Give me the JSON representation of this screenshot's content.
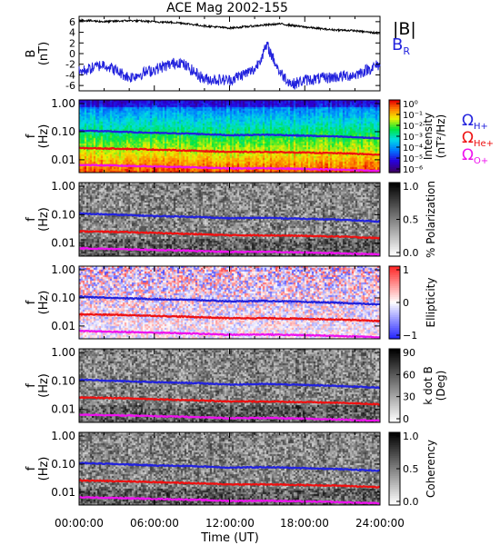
{
  "figure": {
    "title": "ACE Mag 2002-155"
  },
  "x_axis": {
    "label": "Time (UT)",
    "ticks": [
      "00:00:00",
      "06:00:00",
      "12:00:00",
      "18:00:00",
      "24:00:00"
    ],
    "range_hours": [
      0,
      24
    ]
  },
  "legends": {
    "field": [
      {
        "text": "|B|",
        "color": "#000000"
      },
      {
        "text": "B",
        "sub": "R",
        "color": "#2222dd"
      }
    ],
    "gyro": [
      {
        "text": "Ω",
        "sub": "H+",
        "color": "#2222dd"
      },
      {
        "text": "Ω",
        "sub": "He+",
        "color": "#ee1111"
      },
      {
        "text": "Ω",
        "sub": "O+",
        "color": "#ee11ee"
      }
    ]
  },
  "panels": [
    {
      "id": "field",
      "ylabel1": "B",
      "ylabel2": "(nT)",
      "yticks": [
        "-6",
        "-4",
        "-2",
        "0",
        "2",
        "4",
        "6"
      ],
      "ylim": [
        -7,
        7
      ]
    },
    {
      "id": "intensity",
      "ylabel1": "f",
      "ylabel2": "(Hz)",
      "yticks": [
        "1.00",
        "0.10",
        "0.01"
      ],
      "colorbar": {
        "palette": "rainbow",
        "label1": "Intensity",
        "label2": "(nT²/Hz)",
        "ticks": [
          "10⁰",
          "10⁻¹",
          "10⁻²",
          "10⁻³",
          "10⁻⁴",
          "10⁻⁵",
          "10⁻⁶"
        ]
      }
    },
    {
      "id": "polarization",
      "ylabel1": "f",
      "ylabel2": "(Hz)",
      "yticks": [
        "1.00",
        "0.10",
        "0.01"
      ],
      "colorbar": {
        "palette": "gray",
        "label1": "% Polarization",
        "label2": "",
        "ticks": [
          "1.0",
          "0.5",
          "0.0"
        ]
      }
    },
    {
      "id": "ellipticity",
      "ylabel1": "f",
      "ylabel2": "(Hz)",
      "yticks": [
        "1.00",
        "0.10",
        "0.01"
      ],
      "colorbar": {
        "palette": "bwr",
        "label1": "Ellipticity",
        "label2": "",
        "ticks": [
          "1",
          "0",
          "−1"
        ]
      }
    },
    {
      "id": "kdotb",
      "ylabel1": "f",
      "ylabel2": "(Hz)",
      "yticks": [
        "1.00",
        "0.10",
        "0.01"
      ],
      "colorbar": {
        "palette": "gray",
        "label1": "k dot B",
        "label2": "(Deg)",
        "ticks": [
          "90",
          "60",
          "30",
          "0"
        ]
      }
    },
    {
      "id": "coherency",
      "ylabel1": "f",
      "ylabel2": "(Hz)",
      "yticks": [
        "1.00",
        "0.10",
        "0.01"
      ],
      "colorbar": {
        "palette": "gray",
        "label1": "Coherency",
        "label2": "",
        "ticks": [
          "1.0",
          "0.5",
          "0.0"
        ]
      }
    }
  ],
  "chart_data": {
    "type": "line",
    "x_unit": "hours UT",
    "series": [
      {
        "name": "|B|",
        "color": "#000000",
        "x": [
          0,
          2,
          4,
          6,
          8,
          10,
          12,
          14,
          16,
          18,
          20,
          22,
          24
        ],
        "y": [
          6.3,
          6.0,
          6.2,
          6.0,
          5.8,
          5.2,
          4.8,
          5.2,
          5.6,
          5.0,
          4.5,
          4.3,
          3.8
        ]
      },
      {
        "name": "B_R",
        "color": "#2222dd",
        "x": [
          0,
          2,
          4,
          6,
          8,
          10,
          12,
          14,
          15,
          16,
          17,
          18,
          20,
          22,
          24
        ],
        "y": [
          -3.5,
          -2.0,
          -4.5,
          -3.0,
          -1.5,
          -4.8,
          -5.0,
          -3.0,
          1.5,
          -3.5,
          -5.8,
          -5.0,
          -4.5,
          -4.0,
          -2.0
        ]
      },
      {
        "name": "Ω_H+",
        "color": "#2222dd",
        "unit": "Hz",
        "x": [
          0,
          3,
          6,
          9,
          12,
          15,
          18,
          21,
          24
        ],
        "y": [
          0.11,
          0.1,
          0.09,
          0.085,
          0.075,
          0.078,
          0.072,
          0.066,
          0.058
        ]
      },
      {
        "name": "Ω_He+",
        "color": "#ee1111",
        "unit": "Hz",
        "x": [
          0,
          3,
          6,
          9,
          12,
          15,
          18,
          21,
          24
        ],
        "y": [
          0.026,
          0.025,
          0.023,
          0.021,
          0.019,
          0.019,
          0.018,
          0.017,
          0.015
        ]
      },
      {
        "name": "Ω_O+",
        "color": "#ee11ee",
        "unit": "Hz",
        "x": [
          0,
          3,
          6,
          9,
          12,
          15,
          18,
          21,
          24
        ],
        "y": [
          0.0066,
          0.0062,
          0.0058,
          0.0054,
          0.0049,
          0.005,
          0.0047,
          0.0044,
          0.004
        ]
      }
    ]
  }
}
